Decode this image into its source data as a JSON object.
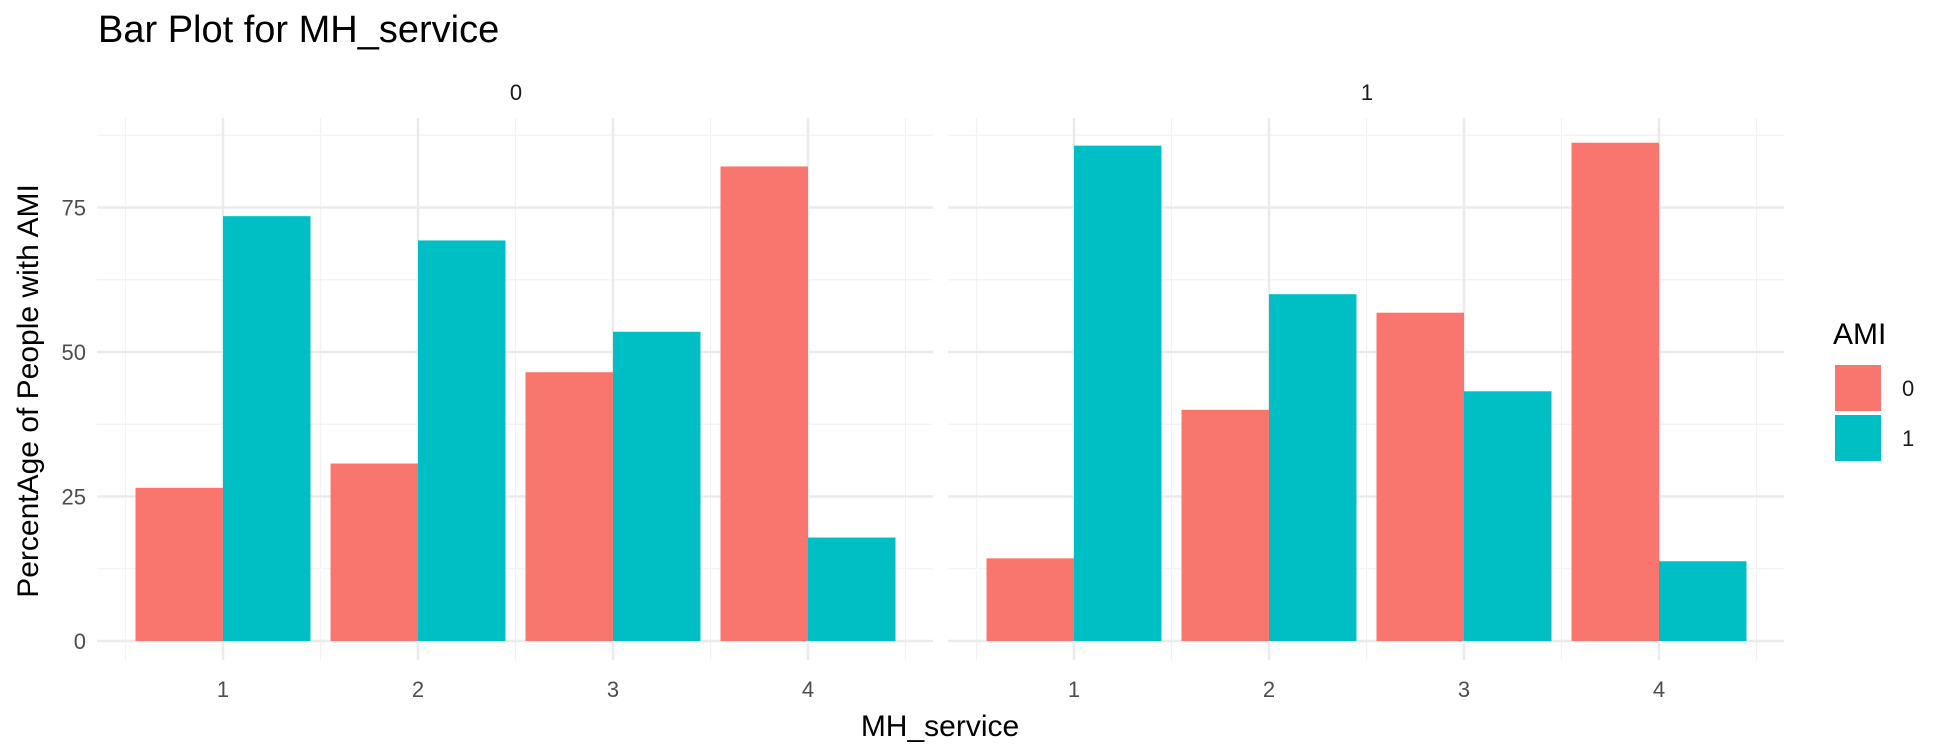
{
  "chart_data": {
    "type": "bar",
    "title": "Bar Plot for MH_service",
    "xlabel": "MH_service",
    "ylabel": "PercentAge of People with AMI",
    "categories": [
      "1",
      "2",
      "3",
      "4"
    ],
    "ylim": [
      0,
      90
    ],
    "yticks": [
      0,
      25,
      50,
      75
    ],
    "grid": true,
    "legend": {
      "title": "AMI",
      "position": "right",
      "entries": [
        {
          "label": "0",
          "color": "#F8766D"
        },
        {
          "label": "1",
          "color": "#00BFC4"
        }
      ]
    },
    "facets": [
      {
        "label": "0",
        "series": [
          {
            "name": "0",
            "values": [
              26.5,
              30.7,
              46.5,
              82.1
            ]
          },
          {
            "name": "1",
            "values": [
              73.5,
              69.3,
              53.5,
              17.9
            ]
          }
        ]
      },
      {
        "label": "1",
        "series": [
          {
            "name": "0",
            "values": [
              14.3,
              40.0,
              56.8,
              86.2
            ]
          },
          {
            "name": "1",
            "values": [
              85.7,
              60.0,
              43.2,
              13.8
            ]
          }
        ]
      }
    ]
  }
}
